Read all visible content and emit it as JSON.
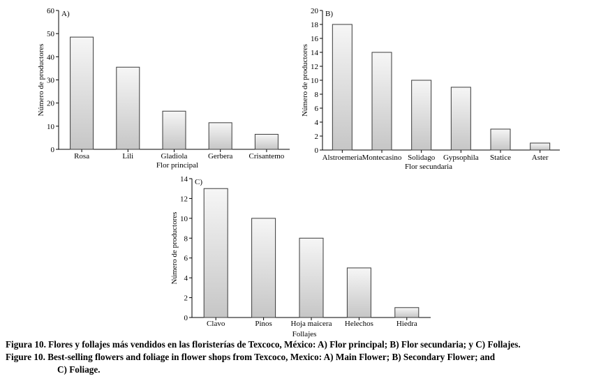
{
  "chart_data": [
    {
      "type": "bar",
      "panel_label": "A)",
      "categories": [
        "Rosa",
        "Lili",
        "Gladiola",
        "Gerbera",
        "Crisantemo"
      ],
      "values": [
        48.5,
        35.5,
        16.5,
        11.5,
        6.5
      ],
      "xlabel": "Flor principal",
      "ylabel": "Número de productores",
      "yticks": [
        0,
        10,
        20,
        30,
        40,
        50,
        60
      ],
      "ylim": [
        0,
        60
      ],
      "grid": false,
      "legend": "none"
    },
    {
      "type": "bar",
      "panel_label": "B)",
      "categories": [
        "Alstroemeria",
        "Montecasino",
        "Solidago",
        "Gypsophila",
        "Statice",
        "Aster"
      ],
      "values": [
        18,
        14,
        10,
        9,
        3,
        1
      ],
      "xlabel": "Flor secundaria",
      "ylabel": "Número de productores",
      "yticks": [
        0,
        2,
        4,
        6,
        8,
        10,
        12,
        14,
        16,
        18,
        20
      ],
      "ylim": [
        0,
        20
      ],
      "grid": false,
      "legend": "none"
    },
    {
      "type": "bar",
      "panel_label": "C)",
      "categories": [
        "Clavo",
        "Pinos",
        "Hoja maicera",
        "Helechos",
        "Hiedra"
      ],
      "values": [
        13,
        10,
        8,
        5,
        1
      ],
      "xlabel": "Follajes",
      "ylabel": "Número de productores",
      "yticks": [
        0,
        2,
        4,
        6,
        8,
        10,
        12,
        14
      ],
      "ylim": [
        0,
        14
      ],
      "grid": false,
      "legend": "none"
    }
  ],
  "caption": {
    "line1": "Figura 10. Flores y follajes más vendidos en las floristerías de Texcoco, México: A) Flor principal; B) Flor secundaria; y C) Follajes.",
    "line2a": "Figure 10. Best-selling flowers and foliage in flower shops from Texcoco, Mexico: A) Main Flower; B) Secondary Flower; and",
    "line2b": "C) Foliage."
  }
}
